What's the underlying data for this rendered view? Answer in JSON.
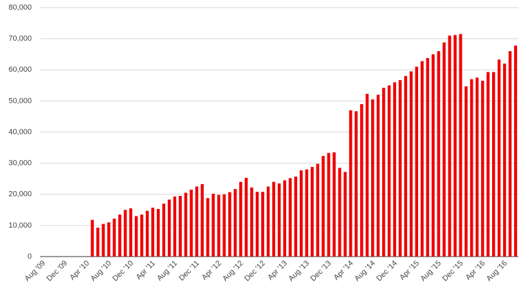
{
  "chart_data": {
    "type": "bar",
    "color": "#ee0000",
    "grid": true,
    "ylim": [
      0,
      80000
    ],
    "yticks": [
      0,
      {
        "value": 10000,
        "label": "10,000"
      },
      {
        "value": 20000,
        "label": "20,000"
      },
      {
        "value": 30000,
        "label": "30,000"
      },
      {
        "value": 40000,
        "label": "40,000"
      },
      {
        "value": 50000,
        "label": "50,000"
      },
      {
        "value": 60000,
        "label": "60,000"
      },
      {
        "value": 70000,
        "label": "70,000"
      },
      {
        "value": 80000,
        "label": "80,000"
      }
    ],
    "categories": [
      "Aug '09",
      null,
      null,
      null,
      "Dec '09",
      null,
      null,
      null,
      "Apr '10",
      null,
      null,
      null,
      "Aug '10",
      null,
      null,
      null,
      "Dec '10",
      null,
      null,
      null,
      "Apr '11",
      null,
      null,
      null,
      "Aug '11",
      null,
      null,
      null,
      "Dec '11",
      null,
      null,
      null,
      "Apr '12",
      null,
      null,
      null,
      "Aug '12",
      null,
      null,
      null,
      "Dec '12",
      null,
      null,
      null,
      "Apr '13",
      null,
      null,
      null,
      "Aug '13",
      null,
      null,
      null,
      "Dec '13",
      null,
      null,
      null,
      "Apr '14",
      null,
      null,
      null,
      "Aug '14",
      null,
      null,
      null,
      "Dec '14",
      null,
      null,
      null,
      "Apr '15",
      null,
      null,
      null,
      "Aug '15",
      null,
      null,
      null,
      "Dec '15",
      null,
      null,
      null,
      "Apr '16",
      null,
      null,
      null,
      "Aug '16",
      null,
      null
    ],
    "values": [
      null,
      null,
      null,
      null,
      null,
      null,
      null,
      null,
      null,
      11800,
      9300,
      10500,
      11000,
      12200,
      13500,
      15000,
      15500,
      13000,
      13500,
      14700,
      15700,
      15300,
      17000,
      18300,
      19300,
      19500,
      20500,
      21500,
      22500,
      23300,
      18800,
      20200,
      19800,
      20000,
      20700,
      21700,
      24000,
      25300,
      22200,
      20800,
      20800,
      22500,
      24000,
      23500,
      24500,
      25200,
      25700,
      27700,
      28000,
      28800,
      29800,
      32300,
      33300,
      33500,
      28500,
      27200,
      47000,
      46700,
      49000,
      52300,
      50500,
      52000,
      54200,
      55000,
      56000,
      56700,
      58000,
      59500,
      61000,
      62800,
      63800,
      65000,
      66000,
      68800,
      71000,
      71200,
      71500,
      54700,
      57000,
      57500,
      56500,
      59300,
      59300,
      63300,
      62000,
      66000,
      67800
    ]
  }
}
